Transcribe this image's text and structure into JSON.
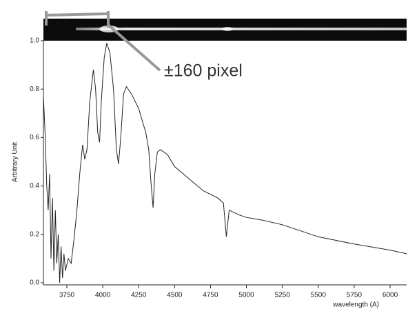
{
  "chart_data": {
    "type": "line",
    "ylabel": "Arbitrary Unit",
    "xlabel": "wavelength (A)",
    "annotation": "±160 pixel",
    "color": "#222222",
    "xlim": [
      3587,
      6115
    ],
    "ylim": [
      0,
      1.0
    ],
    "xticks": [
      3750,
      4000,
      4250,
      4500,
      4750,
      5000,
      5250,
      5500,
      5750,
      6000
    ],
    "yticks": [
      {
        "value": 0,
        "label": "0.0"
      },
      0.2,
      0.4,
      0.6,
      0.8,
      {
        "value": 1,
        "label": "1.0"
      }
    ],
    "x": [
      3587,
      3600,
      3610,
      3620,
      3630,
      3640,
      3650,
      3660,
      3670,
      3680,
      3690,
      3700,
      3710,
      3720,
      3730,
      3740,
      3760,
      3780,
      3800,
      3820,
      3840,
      3860,
      3875,
      3890,
      3910,
      3935,
      3950,
      3965,
      3978,
      3990,
      4010,
      4028,
      4050,
      4075,
      4095,
      4110,
      4125,
      4145,
      4165,
      4200,
      4250,
      4300,
      4320,
      4335,
      4350,
      4362,
      4380,
      4400,
      4450,
      4500,
      4600,
      4700,
      4800,
      4840,
      4860,
      4880,
      4950,
      5000,
      5100,
      5250,
      5500,
      5750,
      6000,
      6115
    ],
    "values": [
      0.77,
      0.6,
      0.4,
      0.3,
      0.45,
      0.1,
      0.35,
      0.05,
      0.3,
      0.08,
      0.2,
      0.0,
      0.15,
      0.02,
      0.12,
      0.05,
      0.1,
      0.08,
      0.18,
      0.3,
      0.45,
      0.57,
      0.51,
      0.55,
      0.75,
      0.88,
      0.8,
      0.62,
      0.58,
      0.75,
      0.93,
      0.99,
      0.95,
      0.8,
      0.55,
      0.49,
      0.6,
      0.78,
      0.81,
      0.78,
      0.72,
      0.62,
      0.55,
      0.42,
      0.31,
      0.45,
      0.54,
      0.55,
      0.53,
      0.48,
      0.43,
      0.38,
      0.35,
      0.33,
      0.19,
      0.3,
      0.28,
      0.27,
      0.26,
      0.24,
      0.19,
      0.16,
      0.135,
      0.12
    ]
  }
}
